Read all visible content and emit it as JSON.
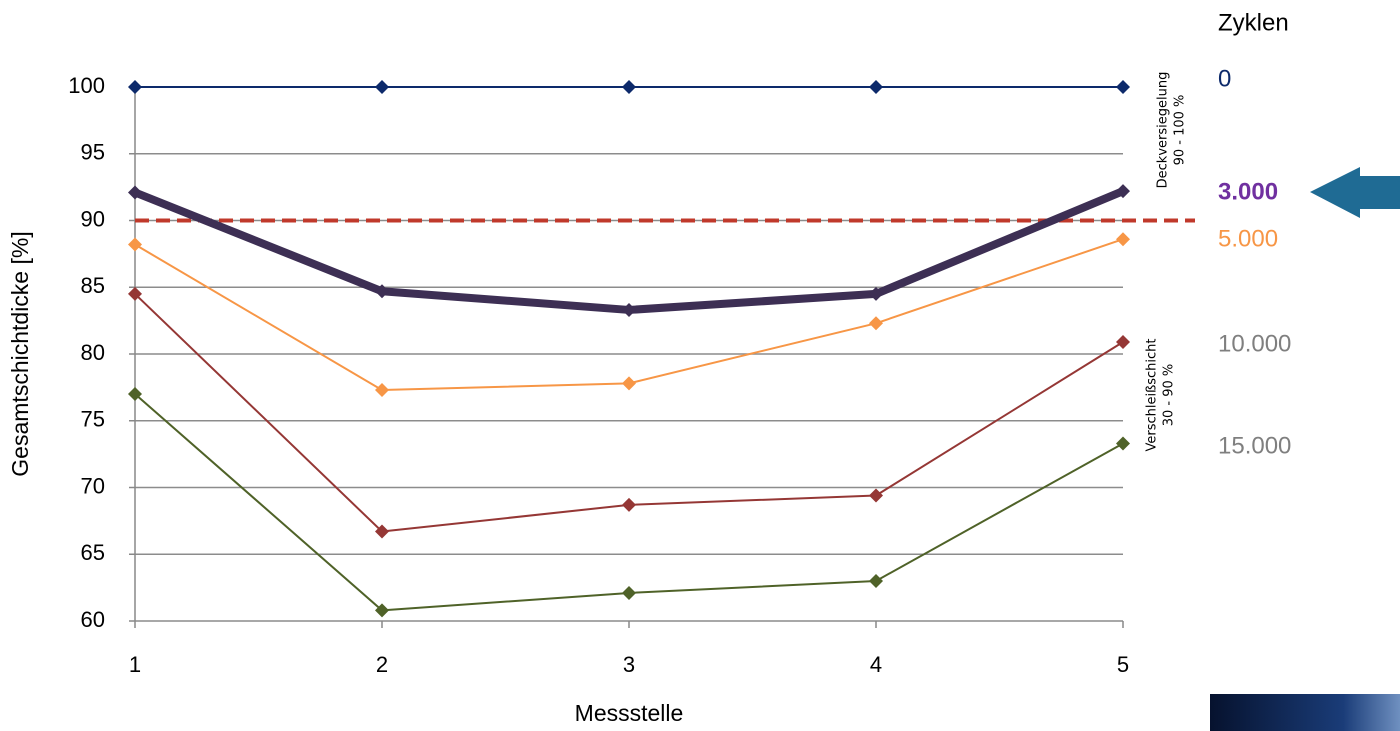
{
  "chart_data": {
    "type": "line",
    "x_label": "Messstelle",
    "y_label": "Gesamtschichtdicke [%]",
    "x": [
      1,
      2,
      3,
      4,
      5
    ],
    "xlim": [
      1,
      5
    ],
    "xticks": [
      1,
      2,
      3,
      4,
      5
    ],
    "ylim": [
      60,
      100
    ],
    "yticks": [
      60,
      65,
      70,
      75,
      80,
      85,
      90,
      95,
      100
    ],
    "grid": true,
    "legend_title": "Zyklen",
    "series": [
      {
        "name": "0",
        "color": "#0d2a6b",
        "legend_color": "#0d2a6b",
        "width": 2,
        "values": [
          100,
          100,
          100,
          100,
          100
        ]
      },
      {
        "name": "3.000",
        "color": "#3d2f54",
        "legend_color": "#7030a0",
        "width": 8,
        "values": [
          92.1,
          84.7,
          83.3,
          84.5,
          92.2
        ]
      },
      {
        "name": "5.000",
        "color": "#f79646",
        "legend_color": "#f79646",
        "width": 2,
        "values": [
          88.2,
          77.3,
          77.8,
          82.3,
          88.6
        ]
      },
      {
        "name": "10.000",
        "color": "#953735",
        "legend_color": "#7f7f7f",
        "width": 2,
        "values": [
          84.5,
          66.7,
          68.7,
          69.4,
          80.9
        ]
      },
      {
        "name": "15.000",
        "color": "#4f6228",
        "legend_color": "#7f7f7f",
        "width": 2,
        "values": [
          77.0,
          60.8,
          62.1,
          63.0,
          73.3
        ]
      }
    ],
    "reference_line": {
      "value": 90,
      "color": "#c0392b"
    },
    "annotations": [
      {
        "lines": [
          "Deckversiegelung",
          "90 - 100 %"
        ]
      },
      {
        "lines": [
          "Verschleißschicht",
          "30 - 90 %"
        ]
      }
    ]
  }
}
